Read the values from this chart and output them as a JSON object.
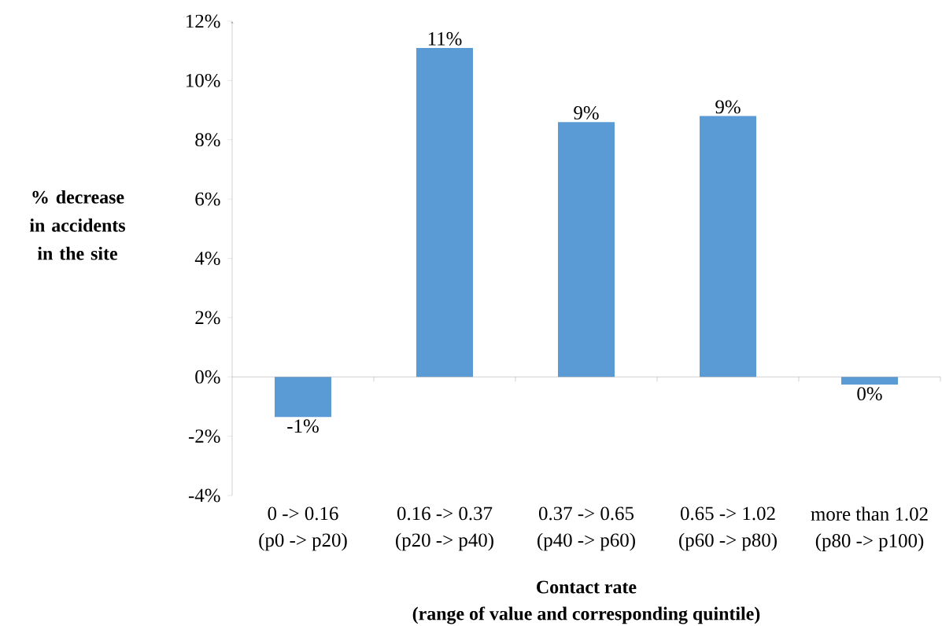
{
  "chart_data": {
    "type": "bar",
    "xlabel": "Contact rate\n(range of value and corresponding quintile)",
    "ylabel": "% decrease in accidents in the site",
    "categories": [
      "0 -> 0.16\n(p0 -> p20)",
      "0.16 -> 0.37\n(p20 -> p40)",
      "0.37 -> 0.65\n(p40 -> p60)",
      "0.65 -> 1.02\n(p60 -> p80)",
      "more than 1.02\n(p80 -> p100)"
    ],
    "values": [
      -1.35,
      11.1,
      8.6,
      8.8,
      -0.26
    ],
    "value_labels": [
      "-1%",
      "11%",
      "9%",
      "9%",
      "0%"
    ],
    "color": "#5b9bd5",
    "ylim": [
      -4,
      12
    ],
    "yticks": [
      {
        "value": -4,
        "label": "-4%"
      },
      {
        "value": -2,
        "label": "-2%"
      },
      {
        "value": 0,
        "label": "0%"
      },
      {
        "value": 2,
        "label": "2%"
      },
      {
        "value": 4,
        "label": "4%"
      },
      {
        "value": 6,
        "label": "6%"
      },
      {
        "value": 8,
        "label": "8%"
      },
      {
        "value": 10,
        "label": "10%"
      },
      {
        "value": 12,
        "label": "12%"
      }
    ]
  }
}
